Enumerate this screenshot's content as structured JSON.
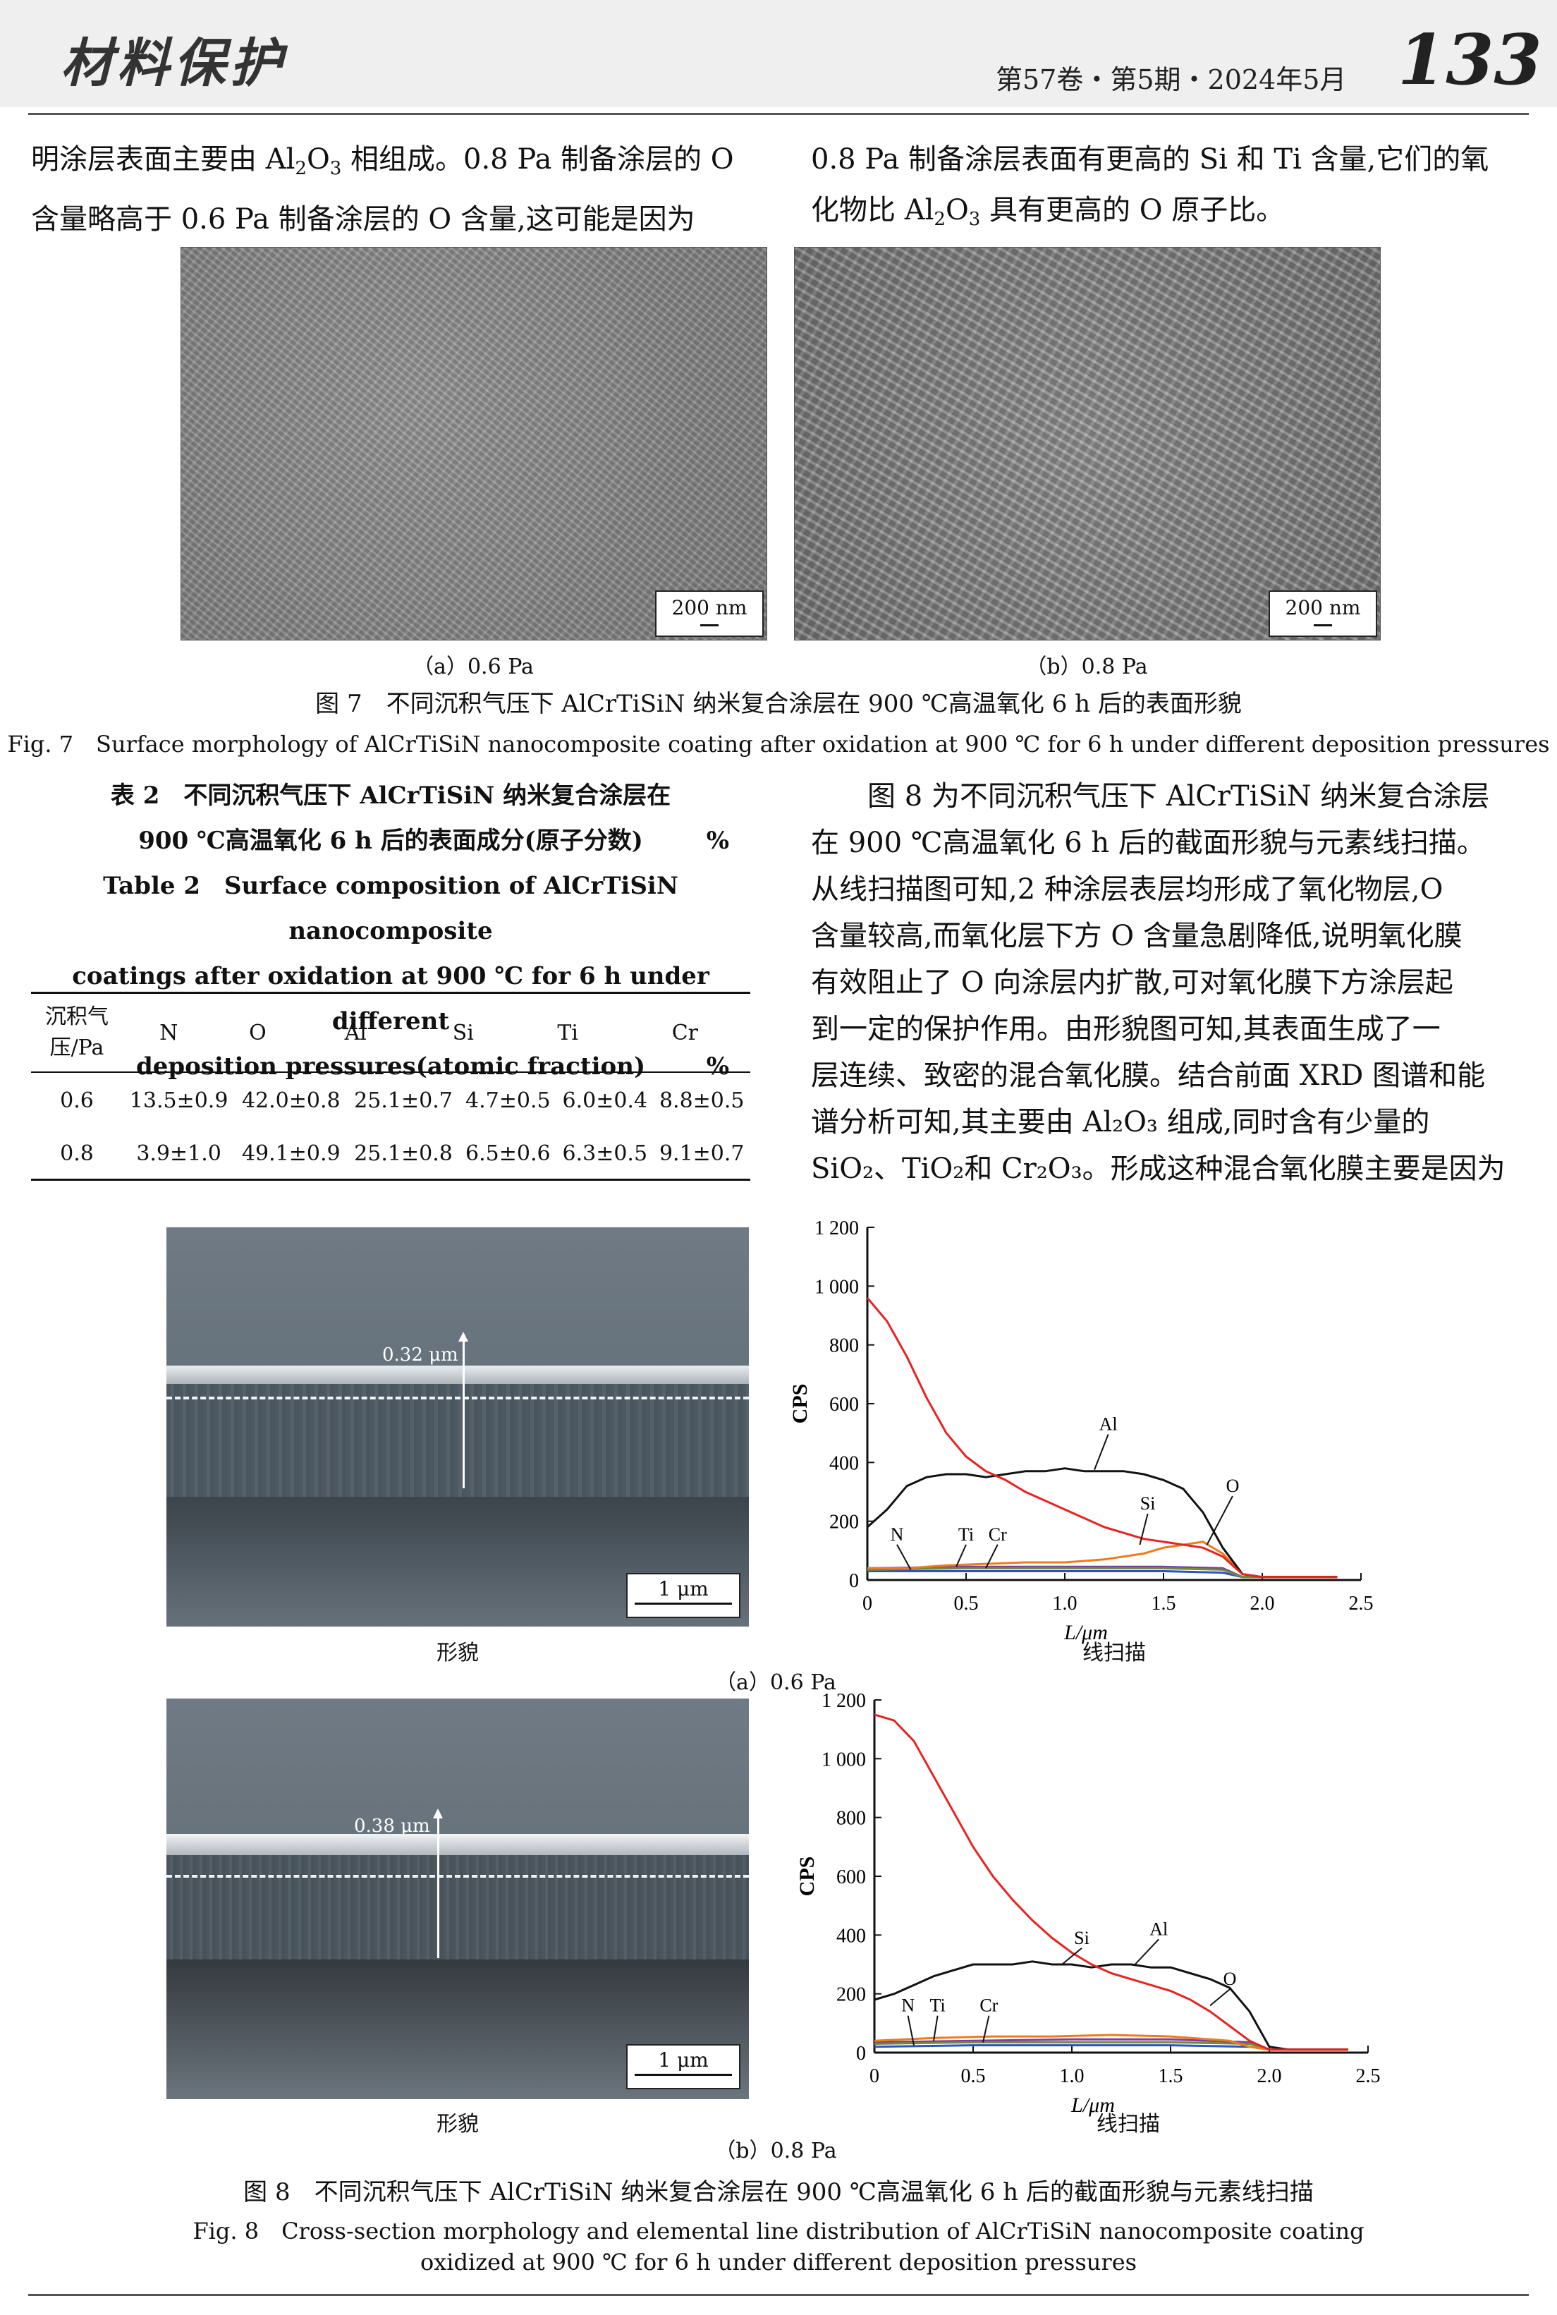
{
  "header": {
    "journal": "材料保护",
    "issue": "第57卷・第5期・2024年5月",
    "page_number": "133"
  },
  "text": {
    "left_para_line1": "明涂层表面主要由 Al",
    "left_para_line1_sub": "2",
    "left_para_line1_mid": "O",
    "left_para_line1_sub2": "3",
    "left_para_line1_end": " 相组成。0.8 Pa 制备涂层的 O",
    "left_para_line2": "含量略高于 0.6 Pa 制备涂层的 O 含量,这可能是因为",
    "right_para_line1": "0.8 Pa 制备涂层表面有更高的 Si 和 Ti 含量,它们的氧",
    "right_para_line2_a": "化物比 Al",
    "right_para_line2_sub": "2",
    "right_para_line2_b": "O",
    "right_para_line2_sub2": "3",
    "right_para_line2_c": " 具有更高的 O 原子比。",
    "right_block": [
      "图 8 为不同沉积气压下 AlCrTiSiN 纳米复合涂层",
      "在 900 ℃高温氧化 6 h 后的截面形貌与元素线扫描。",
      "从线扫描图可知,2 种涂层表层均形成了氧化物层,O",
      "含量较高,而氧化层下方 O 含量急剧降低,说明氧化膜",
      "有效阻止了 O 向涂层内扩散,可对氧化膜下方涂层起",
      "到一定的保护作用。由形貌图可知,其表面生成了一",
      "层连续、致密的混合氧化膜。结合前面 XRD 图谱和能",
      "谱分析可知,其主要由 Al₂O₃ 组成,同时含有少量的",
      "SiO₂、TiO₂和 Cr₂O₃。形成这种混合氧化膜主要是因为"
    ]
  },
  "fig7": {
    "panel_a_label": "（a）0.6 Pa",
    "panel_b_label": "（b）0.8 Pa",
    "scale_label": "200 nm",
    "caption_cn": "图 7　不同沉积气压下 AlCrTiSiN 纳米复合涂层在 900 ℃高温氧化 6 h 后的表面形貌",
    "caption_en": "Fig. 7　Surface morphology of AlCrTiSiN nanocomposite coating after oxidation at 900 ℃ for 6 h under different deposition pressures"
  },
  "table2": {
    "title_cn_1": "表 2　不同沉积气压下 AlCrTiSiN 纳米复合涂层在",
    "title_cn_2": "900 ℃高温氧化 6 h 后的表面成分(原子分数)",
    "title_en_1": "Table 2　Surface composition of AlCrTiSiN nanocomposite",
    "title_en_2": "coatings after oxidation at 900 ℃ for 6 h under different",
    "title_en_3": "deposition pressures(atomic fraction)",
    "unit": "%",
    "headers": [
      "沉积气\n压/Pa",
      "N",
      "O",
      "Al",
      "Si",
      "Ti",
      "Cr"
    ],
    "rows": [
      [
        "0.6",
        "13.5±0.9",
        "42.0±0.8",
        "25.1±0.7",
        "4.7±0.5",
        "6.0±0.4",
        "8.8±0.5"
      ],
      [
        "0.8",
        "3.9±1.0",
        "49.1±0.9",
        "25.1±0.8",
        "6.5±0.6",
        "6.3±0.5",
        "9.1±0.7"
      ]
    ]
  },
  "fig8": {
    "panel_a": {
      "thickness_label": "0.32 μm",
      "scale_label": "1 μm",
      "morph_label": "形貌",
      "scan_label": "线扫描",
      "panel_label": "（a）0.6 Pa"
    },
    "panel_b": {
      "thickness_label": "0.38 μm",
      "scale_label": "1 μm",
      "morph_label": "形貌",
      "scan_label": "线扫描",
      "panel_label": "（b）0.8 Pa"
    },
    "caption_cn": "图 8　不同沉积气压下 AlCrTiSiN 纳米复合涂层在 900 ℃高温氧化 6 h 后的截面形貌与元素线扫描",
    "caption_en_1": "Fig. 8　Cross-section morphology and elemental line distribution of AlCrTiSiN nanocomposite coating",
    "caption_en_2": "oxidized at 900 ℃ for 6 h under different deposition pressures"
  },
  "colors": {
    "O": "#e8231f",
    "Al": "#111111",
    "Si": "#f07a1c",
    "N": "#3050c8",
    "Ti": "#7a3fa0",
    "Cr": "#6f8c3a"
  },
  "chart_data": [
    {
      "type": "line",
      "xlabel": "L/μm",
      "ylabel": "CPS",
      "xlim": [
        0,
        2.5
      ],
      "ylim": [
        0,
        1200
      ],
      "xticks": [
        "0",
        "0.5",
        "1.0",
        "1.5",
        "2.0",
        "2.5"
      ],
      "yticks": [
        "0",
        "200",
        "400",
        "600",
        "800",
        "1 000",
        "1 200"
      ],
      "series_labels": [
        "Al",
        "O",
        "Si",
        "N",
        "Ti",
        "Cr"
      ],
      "series": [
        {
          "name": "O",
          "x": [
            0,
            0.1,
            0.2,
            0.3,
            0.4,
            0.5,
            0.6,
            0.7,
            0.8,
            0.9,
            1.0,
            1.1,
            1.2,
            1.3,
            1.4,
            1.5,
            1.6,
            1.7,
            1.8,
            1.9,
            2.0,
            2.1,
            2.2,
            2.3,
            2.38
          ],
          "y": [
            960,
            880,
            760,
            620,
            500,
            420,
            370,
            340,
            300,
            270,
            240,
            210,
            180,
            160,
            140,
            130,
            120,
            110,
            80,
            20,
            10,
            10,
            10,
            10,
            10
          ]
        },
        {
          "name": "Al",
          "x": [
            0,
            0.1,
            0.2,
            0.3,
            0.4,
            0.5,
            0.6,
            0.7,
            0.8,
            0.9,
            1.0,
            1.1,
            1.2,
            1.3,
            1.4,
            1.5,
            1.6,
            1.7,
            1.8,
            1.9,
            2.0,
            2.1,
            2.2,
            2.3,
            2.38
          ],
          "y": [
            180,
            240,
            320,
            350,
            360,
            360,
            350,
            360,
            370,
            370,
            380,
            370,
            370,
            370,
            360,
            340,
            310,
            230,
            110,
            20,
            10,
            10,
            10,
            10,
            10
          ]
        },
        {
          "name": "Si",
          "x": [
            0,
            0.2,
            0.4,
            0.6,
            0.8,
            1.0,
            1.2,
            1.4,
            1.5,
            1.6,
            1.7,
            1.8,
            1.9,
            2.0,
            2.38
          ],
          "y": [
            40,
            40,
            50,
            55,
            60,
            60,
            70,
            90,
            110,
            120,
            130,
            90,
            20,
            10,
            10
          ]
        },
        {
          "name": "N",
          "x": [
            0,
            0.5,
            1.0,
            1.5,
            1.8,
            1.9,
            2.38
          ],
          "y": [
            30,
            30,
            30,
            30,
            25,
            10,
            10
          ]
        },
        {
          "name": "Ti",
          "x": [
            0,
            0.5,
            1.0,
            1.5,
            1.8,
            1.9,
            2.38
          ],
          "y": [
            40,
            45,
            45,
            45,
            40,
            10,
            10
          ]
        },
        {
          "name": "Cr",
          "x": [
            0,
            0.5,
            1.0,
            1.5,
            1.8,
            1.9,
            2.38
          ],
          "y": [
            35,
            40,
            40,
            40,
            35,
            10,
            10
          ]
        }
      ]
    },
    {
      "type": "line",
      "xlabel": "L/μm",
      "ylabel": "CPS",
      "xlim": [
        0,
        2.5
      ],
      "ylim": [
        0,
        1200
      ],
      "xticks": [
        "0",
        "0.5",
        "1.0",
        "1.5",
        "2.0",
        "2.5"
      ],
      "yticks": [
        "0",
        "200",
        "400",
        "600",
        "800",
        "1 000",
        "1 200"
      ],
      "series_labels": [
        "Si",
        "Al",
        "O",
        "N",
        "Ti",
        "Cr"
      ],
      "series": [
        {
          "name": "O",
          "x": [
            0,
            0.1,
            0.2,
            0.3,
            0.4,
            0.5,
            0.6,
            0.7,
            0.8,
            0.9,
            1.0,
            1.1,
            1.2,
            1.3,
            1.4,
            1.5,
            1.6,
            1.7,
            1.8,
            1.9,
            2.0,
            2.1,
            2.2,
            2.3,
            2.4
          ],
          "y": [
            1150,
            1130,
            1060,
            940,
            820,
            700,
            600,
            520,
            450,
            390,
            340,
            300,
            270,
            250,
            230,
            210,
            180,
            140,
            90,
            40,
            10,
            10,
            10,
            10,
            10
          ]
        },
        {
          "name": "Al",
          "x": [
            0,
            0.1,
            0.2,
            0.3,
            0.4,
            0.5,
            0.6,
            0.7,
            0.8,
            0.9,
            1.0,
            1.1,
            1.2,
            1.3,
            1.4,
            1.5,
            1.6,
            1.7,
            1.8,
            1.9,
            2.0,
            2.1,
            2.2,
            2.3,
            2.4
          ],
          "y": [
            180,
            200,
            230,
            260,
            280,
            300,
            300,
            300,
            310,
            300,
            300,
            290,
            300,
            300,
            290,
            290,
            270,
            250,
            220,
            140,
            20,
            10,
            10,
            10,
            10
          ]
        },
        {
          "name": "Si",
          "x": [
            0,
            0.3,
            0.6,
            0.9,
            1.2,
            1.5,
            1.8,
            1.9,
            2.0,
            2.4
          ],
          "y": [
            40,
            50,
            55,
            55,
            60,
            55,
            40,
            20,
            10,
            10
          ]
        },
        {
          "name": "N",
          "x": [
            0,
            0.5,
            1.0,
            1.5,
            1.9,
            2.0,
            2.4
          ],
          "y": [
            20,
            25,
            25,
            25,
            20,
            10,
            10
          ]
        },
        {
          "name": "Ti",
          "x": [
            0,
            0.5,
            1.0,
            1.5,
            1.9,
            2.0,
            2.4
          ],
          "y": [
            35,
            40,
            45,
            45,
            35,
            10,
            10
          ]
        },
        {
          "name": "Cr",
          "x": [
            0,
            0.5,
            1.0,
            1.5,
            1.9,
            2.0,
            2.4
          ],
          "y": [
            30,
            35,
            35,
            35,
            30,
            10,
            10
          ]
        }
      ]
    }
  ]
}
